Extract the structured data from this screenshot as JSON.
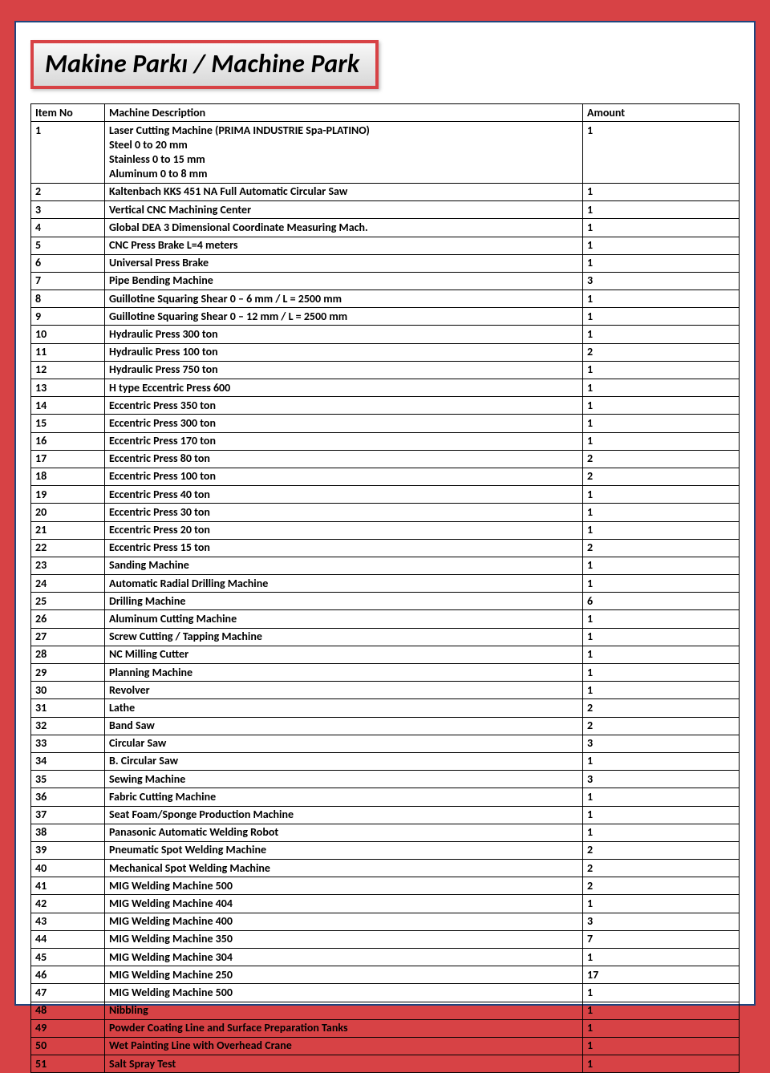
{
  "title": "Makine Parkı / Machine Park",
  "columns": {
    "no": "Item No",
    "desc": "Machine Description",
    "amt": "Amount"
  },
  "rows": [
    {
      "no": "1",
      "desc": "Laser Cutting Machine (PRIMA INDUSTRIE Spa-PLATINO)\nSteel  0 to 20 mm\nStainless 0 to 15 mm\nAluminum 0 to 8 mm",
      "amt": "1"
    },
    {
      "no": "2",
      "desc": "Kaltenbach KKS 451 NA Full Automatic Circular Saw",
      "amt": "1"
    },
    {
      "no": "3",
      "desc": "Vertical CNC Machining Center",
      "amt": "1"
    },
    {
      "no": "4",
      "desc": "Global DEA 3 Dimensional Coordinate Measuring  Mach.",
      "amt": "1"
    },
    {
      "no": "5",
      "desc": "CNC Press  Brake  L=4 meters",
      "amt": "1"
    },
    {
      "no": "6",
      "desc": "Universal Press Brake",
      "amt": "1"
    },
    {
      "no": "7",
      "desc": "Pipe Bending Machine",
      "amt": "3"
    },
    {
      "no": "8",
      "desc": "Guillotine Squaring Shear 0 – 6 mm /  L = 2500 mm",
      "amt": "1"
    },
    {
      "no": "9",
      "desc": "Guillotine Squaring Shear 0 – 12 mm / L = 2500 mm",
      "amt": "1"
    },
    {
      "no": "10",
      "desc": "Hydraulic Press 300 ton",
      "amt": "1"
    },
    {
      "no": "11",
      "desc": "Hydraulic Press 100 ton",
      "amt": "2"
    },
    {
      "no": "12",
      "desc": "Hydraulic Press 750 ton",
      "amt": "1"
    },
    {
      "no": "13",
      "desc": "H type Eccentric Press 600",
      "amt": "1"
    },
    {
      "no": "14",
      "desc": "Eccentric Press 350 ton",
      "amt": "1"
    },
    {
      "no": "15",
      "desc": "Eccentric Press 300 ton",
      "amt": "1"
    },
    {
      "no": "16",
      "desc": "Eccentric Press 170 ton",
      "amt": "1"
    },
    {
      "no": "17",
      "desc": "Eccentric Press 80 ton",
      "amt": "2"
    },
    {
      "no": "18",
      "desc": "Eccentric Press 100 ton",
      "amt": "2"
    },
    {
      "no": "19",
      "desc": "Eccentric Press 40 ton",
      "amt": "1"
    },
    {
      "no": "20",
      "desc": "Eccentric Press 30 ton",
      "amt": "1"
    },
    {
      "no": "21",
      "desc": "Eccentric Press 20 ton",
      "amt": "1"
    },
    {
      "no": "22",
      "desc": "Eccentric Press 15 ton",
      "amt": "2"
    },
    {
      "no": "23",
      "desc": "Sanding Machine",
      "amt": "1"
    },
    {
      "no": "24",
      "desc": "Automatic Radial Drilling Machine",
      "amt": "1"
    },
    {
      "no": "25",
      "desc": "Drilling Machine",
      "amt": "6"
    },
    {
      "no": "26",
      "desc": "Aluminum Cutting Machine",
      "amt": "1"
    },
    {
      "no": "27",
      "desc": "Screw Cutting / Tapping Machine",
      "amt": "1"
    },
    {
      "no": "28",
      "desc": "NC Milling Cutter",
      "amt": "1"
    },
    {
      "no": "29",
      "desc": "Planning Machine",
      "amt": "1"
    },
    {
      "no": "30",
      "desc": "Revolver",
      "amt": "1"
    },
    {
      "no": "31",
      "desc": "Lathe",
      "amt": "2"
    },
    {
      "no": "32",
      "desc": "Band Saw",
      "amt": "2"
    },
    {
      "no": "33",
      "desc": "Circular Saw",
      "amt": "3"
    },
    {
      "no": "34",
      "desc": "B. Circular Saw",
      "amt": "1"
    },
    {
      "no": "35",
      "desc": "Sewing Machine",
      "amt": "3"
    },
    {
      "no": "36",
      "desc": "Fabric Cutting Machine",
      "amt": "1"
    },
    {
      "no": "37",
      "desc": "Seat Foam/Sponge Production Machine",
      "amt": "1"
    },
    {
      "no": "38",
      "desc": "Panasonic Automatic Welding Robot",
      "amt": "1"
    },
    {
      "no": "39",
      "desc": "Pneumatic Spot Welding Machine",
      "amt": "2"
    },
    {
      "no": "40",
      "desc": "Mechanical Spot Welding Machine",
      "amt": "2"
    },
    {
      "no": "41",
      "desc": "MIG Welding Machine 500",
      "amt": "2"
    },
    {
      "no": "42",
      "desc": "MIG Welding Machine 404",
      "amt": "1"
    },
    {
      "no": "43",
      "desc": "MIG Welding Machine 400",
      "amt": "3"
    },
    {
      "no": "44",
      "desc": "MIG Welding Machine 350",
      "amt": "7"
    },
    {
      "no": "45",
      "desc": "MIG Welding Machine 304",
      "amt": "1"
    },
    {
      "no": "46",
      "desc": "MIG Welding Machine 250",
      "amt": "17"
    },
    {
      "no": "47",
      "desc": "MIG Welding Machine 500",
      "amt": "1"
    },
    {
      "no": "48",
      "desc": "Nibbling",
      "amt": "1"
    },
    {
      "no": "49",
      "desc": "Powder Coating Line and Surface Preparation Tanks",
      "amt": "1"
    },
    {
      "no": "50",
      "desc": "Wet Painting Line with Overhead Crane",
      "amt": "1"
    },
    {
      "no": "51",
      "desc": "Salt Spray Test",
      "amt": "1"
    }
  ]
}
